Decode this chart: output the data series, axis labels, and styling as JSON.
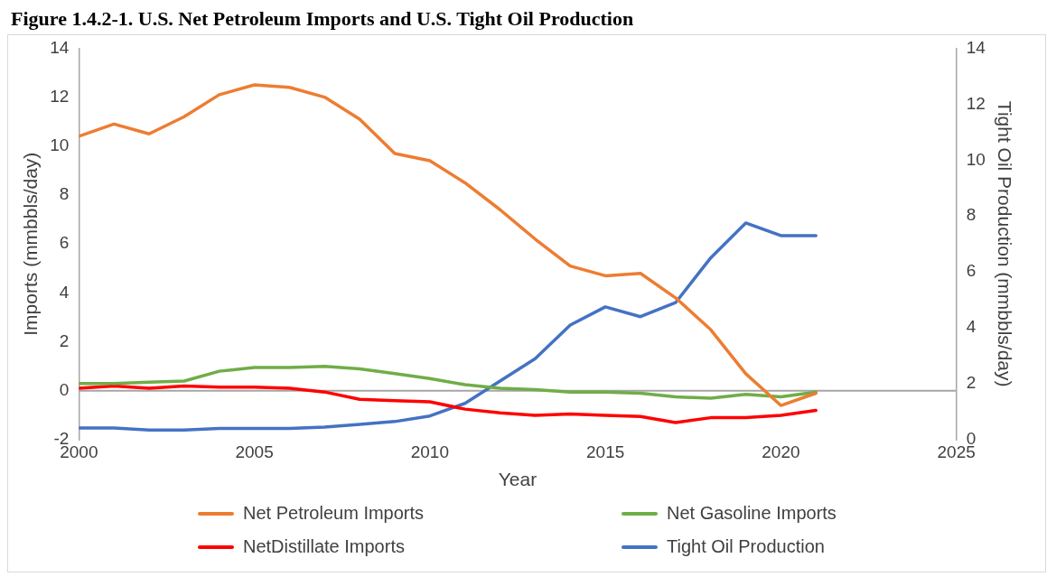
{
  "chart_data": {
    "type": "line",
    "title": "Figure 1.4.2-1. U.S. Net Petroleum Imports and U.S. Tight Oil Production",
    "xlabel": "Year",
    "ylabel": "Imports (mmbbls/day)",
    "y2label": "Tight Oil Production (mmbbls/day)",
    "x": [
      2000,
      2001,
      2002,
      2003,
      2004,
      2005,
      2006,
      2007,
      2008,
      2009,
      2010,
      2011,
      2012,
      2013,
      2014,
      2015,
      2016,
      2017,
      2018,
      2019,
      2020,
      2021
    ],
    "series": [
      {
        "name": "Net Petroleum Imports",
        "color": "#ed7d31",
        "values": [
          10.4,
          10.9,
          10.5,
          11.2,
          12.1,
          12.5,
          12.4,
          12.0,
          11.1,
          9.7,
          9.4,
          8.5,
          7.4,
          6.2,
          5.1,
          4.7,
          4.8,
          3.8,
          2.5,
          0.7,
          -0.6,
          -0.1
        ]
      },
      {
        "name": "Net Gasoline Imports",
        "color": "#70ad47",
        "values": [
          0.3,
          0.3,
          0.35,
          0.4,
          0.8,
          0.95,
          0.95,
          1.0,
          0.9,
          0.7,
          0.5,
          0.25,
          0.1,
          0.05,
          -0.05,
          -0.05,
          -0.1,
          -0.25,
          -0.3,
          -0.15,
          -0.25,
          -0.05
        ]
      },
      {
        "name": "NetDistillate Imports",
        "color": "#ff0000",
        "values": [
          0.1,
          0.2,
          0.1,
          0.2,
          0.15,
          0.15,
          0.1,
          -0.05,
          -0.35,
          -0.4,
          -0.45,
          -0.75,
          -0.9,
          -1.0,
          -0.95,
          -1.0,
          -1.05,
          -1.3,
          -1.1,
          -1.1,
          -1.0,
          -0.8
        ]
      },
      {
        "name": "Tight Oil Production",
        "color": "#4472c4",
        "axis": "y2",
        "values": [
          0.42,
          0.42,
          0.35,
          0.35,
          0.4,
          0.4,
          0.4,
          0.45,
          0.55,
          0.65,
          0.85,
          1.3,
          2.1,
          2.9,
          4.1,
          4.75,
          4.4,
          4.9,
          6.5,
          7.75,
          7.3,
          7.3
        ]
      }
    ],
    "xlim": [
      2000,
      2025
    ],
    "xticks": [
      2000,
      2005,
      2010,
      2015,
      2020,
      2025
    ],
    "ylim": [
      -2,
      14
    ],
    "yticks": [
      -2,
      0,
      2,
      4,
      6,
      8,
      10,
      12,
      14
    ],
    "y2lim": [
      0,
      14
    ],
    "y2ticks": [
      0,
      2,
      4,
      6,
      8,
      10,
      12,
      14
    ],
    "ref_lines": [
      {
        "axis": "y",
        "value": 0,
        "color": "#a6a6a6"
      }
    ],
    "grid": false,
    "legend": "bottom",
    "marker": "none",
    "line_style": "solid"
  }
}
